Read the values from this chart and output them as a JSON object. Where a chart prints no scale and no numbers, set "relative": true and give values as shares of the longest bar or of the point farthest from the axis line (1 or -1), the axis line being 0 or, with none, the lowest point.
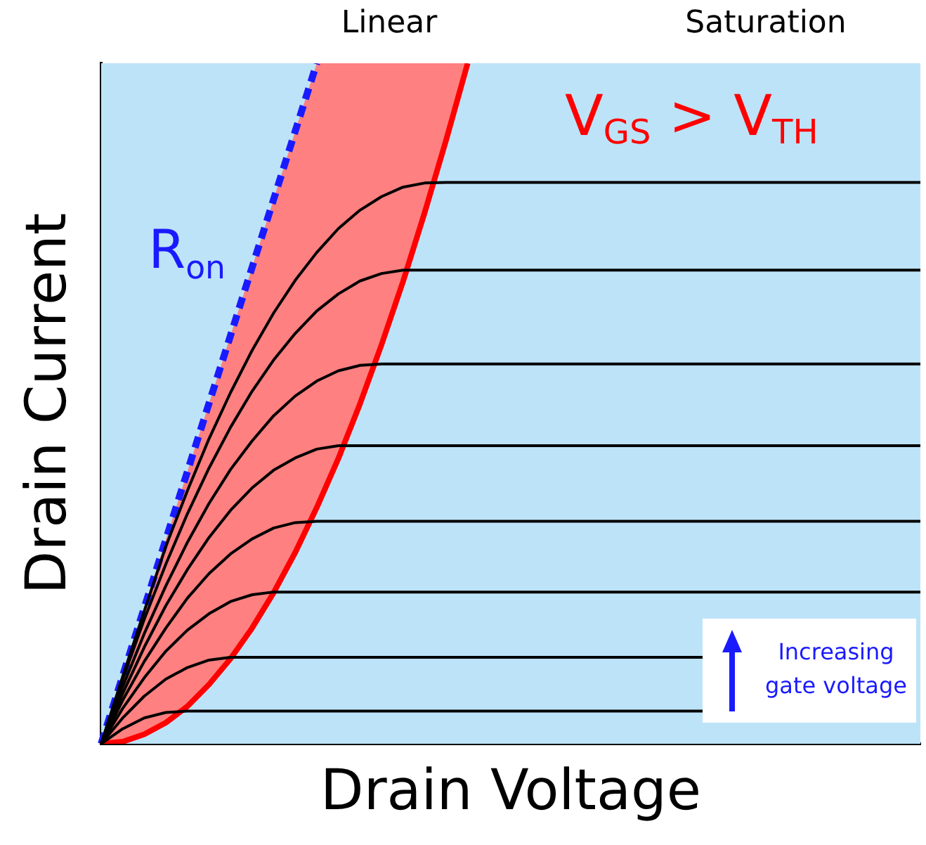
{
  "chart_data": {
    "type": "line",
    "relative": true,
    "xlabel": "Drain Voltage",
    "ylabel": "Drain Current",
    "marker": "none",
    "annotations": [
      "Linear",
      "Saturation",
      "V$_{GS}$ > V$_{TH}$",
      "Increasing gate voltage"
    ],
    "categories": [
      null,
      null,
      null,
      null,
      null,
      null,
      null,
      null,
      null,
      null,
      null,
      null,
      null,
      null,
      null,
      null,
      null,
      null,
      null,
      null,
      null,
      null,
      null,
      null,
      null,
      null,
      null,
      null,
      null,
      null,
      null,
      null,
      null,
      null,
      null,
      null,
      null,
      null,
      null
    ],
    "series": [
      {
        "color": "#ff0000",
        "values": [
          0,
          0.003,
          0.014,
          0.031,
          0.055,
          0.087,
          0.125,
          0.17,
          0.222,
          0.281,
          0.347,
          0.419,
          0.499,
          0.586,
          0.679,
          0.78,
          0.887,
          1,
          null,
          null,
          null,
          null,
          null,
          null,
          null,
          null,
          null,
          null,
          null,
          null,
          null,
          null,
          null,
          null,
          null,
          null,
          null,
          null,
          null
        ],
        "lower": [
          0,
          0.003,
          0.014,
          0.031,
          0.055,
          0.087,
          0.125,
          0.17,
          0.222,
          0.281,
          0.347,
          0.419,
          0.499,
          0.586,
          0.679,
          0.78,
          0.887,
          1,
          null,
          null,
          null,
          null,
          null,
          null,
          null,
          null,
          null,
          null,
          null,
          null,
          null,
          null,
          null,
          null,
          null,
          null,
          null,
          null,
          null
        ],
        "upper": [
          0,
          0.1,
          0.2,
          0.3,
          0.4,
          0.5,
          0.6,
          0.7,
          0.8,
          0.9,
          1,
          1,
          1,
          1,
          1,
          1,
          1,
          1,
          null,
          null,
          null,
          null,
          null,
          null,
          null,
          null,
          null,
          null,
          null,
          null,
          null,
          null,
          null,
          null,
          null,
          null,
          null,
          null,
          null
        ]
      },
      {
        "name": "R$_{on}$",
        "color": "#1a1aff",
        "line_style": "dashed",
        "values": [
          0,
          0.1,
          0.2,
          0.3,
          0.4,
          0.5,
          0.6,
          0.7,
          0.8,
          0.9,
          1,
          null,
          null,
          null,
          null,
          null,
          null,
          null,
          null,
          null,
          null,
          null,
          null,
          null,
          null,
          null,
          null,
          null,
          null,
          null,
          null,
          null,
          null,
          null,
          null,
          null,
          null,
          null,
          null
        ]
      },
      {
        "color": "#000000",
        "values": [
          0,
          0.022,
          0.038,
          0.046,
          0.048,
          0.048,
          0.048,
          0.048,
          0.048,
          0.048,
          0.048,
          0.048,
          0.048,
          0.048,
          0.048,
          0.048,
          0.048,
          0.048,
          0.048,
          0.048,
          0.048,
          0.048,
          0.048,
          0.048,
          0.048,
          0.048,
          0.048,
          0.048,
          0.048,
          null,
          null,
          null,
          null,
          null,
          null,
          null,
          null,
          null,
          null
        ]
      },
      {
        "color": "#000000",
        "values": [
          0,
          0.038,
          0.07,
          0.095,
          0.112,
          0.123,
          0.127,
          0.127,
          0.127,
          0.127,
          0.127,
          0.127,
          0.127,
          0.127,
          0.127,
          0.127,
          0.127,
          0.127,
          0.127,
          0.127,
          0.127,
          0.127,
          0.127,
          0.127,
          0.127,
          0.127,
          0.127,
          0.127,
          0.127,
          null,
          null,
          null,
          null,
          null,
          null,
          null,
          null,
          null,
          null
        ]
      },
      {
        "color": "#000000",
        "values": [
          0,
          0.052,
          0.097,
          0.136,
          0.167,
          0.191,
          0.209,
          0.219,
          0.223,
          0.223,
          0.223,
          0.223,
          0.223,
          0.223,
          0.223,
          0.223,
          0.223,
          0.223,
          0.223,
          0.223,
          0.223,
          0.223,
          0.223,
          0.223,
          0.223,
          0.223,
          0.223,
          0.223,
          0.223,
          0.223,
          0.223,
          0.223,
          0.223,
          0.223,
          0.223,
          0.223,
          0.223,
          0.223,
          0.223
        ]
      },
      {
        "color": "#000000",
        "values": [
          0,
          0.064,
          0.121,
          0.17,
          0.214,
          0.25,
          0.279,
          0.301,
          0.317,
          0.325,
          0.327,
          0.327,
          0.327,
          0.327,
          0.327,
          0.327,
          0.327,
          0.327,
          0.327,
          0.327,
          0.327,
          0.327,
          0.327,
          0.327,
          0.327,
          0.327,
          0.327,
          0.327,
          0.327,
          0.327,
          0.327,
          0.327,
          0.327,
          0.327,
          0.327,
          0.327,
          0.327,
          0.327,
          0.327
        ]
      },
      {
        "color": "#000000",
        "values": [
          0,
          0.074,
          0.142,
          0.203,
          0.256,
          0.303,
          0.343,
          0.376,
          0.402,
          0.42,
          0.433,
          0.438,
          0.438,
          0.438,
          0.438,
          0.438,
          0.438,
          0.438,
          0.438,
          0.438,
          0.438,
          0.438,
          0.438,
          0.438,
          0.438,
          0.438,
          0.438,
          0.438,
          0.438,
          0.438,
          0.438,
          0.438,
          0.438,
          0.438,
          0.438,
          0.438,
          0.438,
          0.438,
          0.438
        ]
      },
      {
        "color": "#000000",
        "values": [
          0,
          0.084,
          0.162,
          0.232,
          0.296,
          0.353,
          0.403,
          0.445,
          0.482,
          0.511,
          0.533,
          0.548,
          0.556,
          0.558,
          0.558,
          0.558,
          0.558,
          0.558,
          0.558,
          0.558,
          0.558,
          0.558,
          0.558,
          0.558,
          0.558,
          0.558,
          0.558,
          0.558,
          0.558,
          0.558,
          0.558,
          0.558,
          0.558,
          0.558,
          0.558,
          0.558,
          0.558,
          0.558,
          0.558
        ]
      },
      {
        "color": "#000000",
        "values": [
          0,
          0.095,
          0.183,
          0.264,
          0.338,
          0.405,
          0.465,
          0.518,
          0.564,
          0.603,
          0.636,
          0.661,
          0.68,
          0.691,
          0.696,
          0.696,
          0.696,
          0.696,
          0.696,
          0.696,
          0.696,
          0.696,
          0.696,
          0.696,
          0.696,
          0.696,
          0.696,
          0.696,
          0.696,
          0.696,
          0.696,
          0.696,
          0.696,
          0.696,
          0.696,
          0.696,
          0.696,
          0.696,
          0.696
        ]
      },
      {
        "color": "#000000",
        "values": [
          0,
          0.099,
          0.195,
          0.29,
          0.372,
          0.448,
          0.516,
          0.578,
          0.633,
          0.681,
          0.722,
          0.757,
          0.784,
          0.804,
          0.818,
          0.824,
          0.825,
          0.825,
          0.825,
          0.825,
          0.825,
          0.825,
          0.825,
          0.825,
          0.825,
          0.825,
          0.825,
          0.825,
          0.825,
          0.825,
          0.825,
          0.825,
          0.825,
          0.825,
          0.825,
          0.825,
          0.825,
          0.825,
          0.825
        ]
      }
    ]
  }
}
